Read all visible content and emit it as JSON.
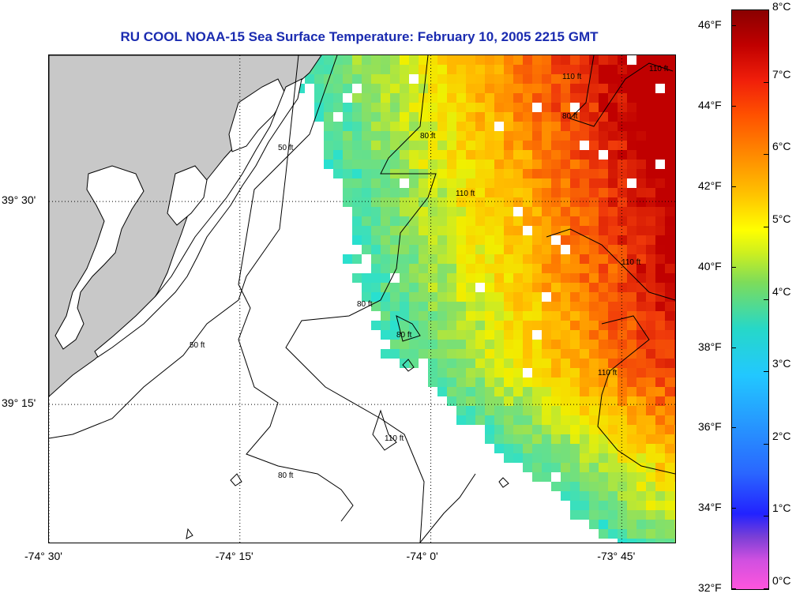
{
  "title": "RU COOL  NOAA-15  Sea Surface Temperature:  February 10, 2005 2215 GMT",
  "map": {
    "x_ticks": [
      {
        "label": "-74° 30'",
        "lon": -74.5
      },
      {
        "label": "-74° 15'",
        "lon": -74.25
      },
      {
        "label": "-74° 0'",
        "lon": -74.0
      },
      {
        "label": "-73° 45'",
        "lon": -73.75
      }
    ],
    "y_ticks": [
      {
        "label": "39° 30'",
        "lat": 39.5
      },
      {
        "label": "39° 15'",
        "lat": 39.25
      }
    ],
    "lon_range": [
      -74.5,
      -73.68
    ],
    "lat_range": [
      39.08,
      39.68
    ],
    "grid": "dotted",
    "land_color": "#c8c8c8",
    "no_data_color": "#ffffff",
    "contour_labels": [
      "50 ft",
      "50 ft",
      "80 ft",
      "80 ft",
      "80 ft",
      "80 ft",
      "80 ft",
      "110 ft",
      "110 ft",
      "110 ft",
      "110 ft",
      "110 ft",
      "110 ft"
    ]
  },
  "colorbar": {
    "fahrenheit_labels": [
      "46°F",
      "44°F",
      "42°F",
      "40°F",
      "38°F",
      "36°F",
      "34°F",
      "32°F"
    ],
    "celsius_labels": [
      "8°C",
      "7°C",
      "6°C",
      "5°C",
      "4°C",
      "3°C",
      "2°C",
      "1°C",
      "0°C"
    ],
    "range_celsius": [
      0,
      8
    ],
    "range_fahrenheit": [
      32,
      46.4
    ]
  }
}
